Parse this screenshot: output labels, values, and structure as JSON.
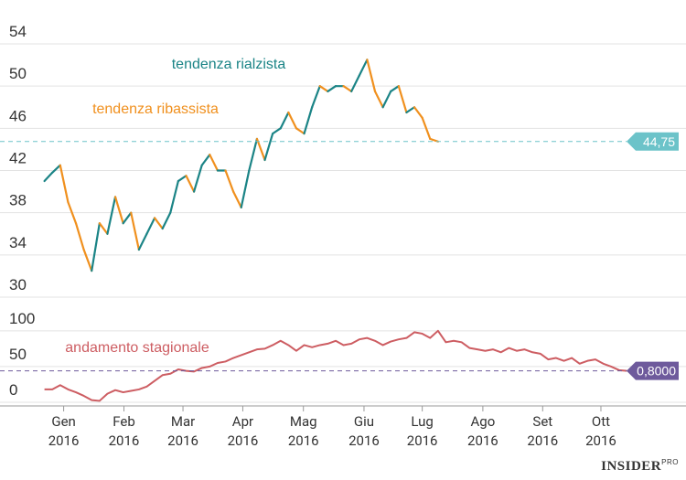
{
  "chart_data": [
    {
      "type": "trend-line",
      "values": [
        41,
        41.8,
        42.5,
        39,
        37,
        34.5,
        32.5,
        37,
        36,
        39.5,
        37,
        38,
        34.5,
        36,
        37.5,
        36.5,
        38,
        41,
        41.5,
        40,
        42.5,
        43.5,
        42,
        42,
        40,
        38.5,
        42,
        45,
        43,
        45.5,
        46,
        47.5,
        46,
        45.5,
        48,
        50,
        49.5,
        50,
        50,
        49.5,
        51,
        52.5,
        49.5,
        48,
        49.5,
        50,
        47.5,
        48,
        47,
        45,
        44.75
      ],
      "last_value_label": "44,75",
      "badge_color": "#6cc3c9",
      "up_color": "#1b8486",
      "down_color": "#f0901e",
      "annotations": [
        {
          "text": "tendenza rialzista",
          "color": "#1b8486"
        },
        {
          "text": "tendenza ribassista",
          "color": "#f0901e"
        }
      ],
      "xlim": [
        -1,
        80
      ],
      "ylim": [
        30,
        54
      ],
      "yticks": [
        30,
        34,
        38,
        42,
        46,
        50,
        54
      ],
      "grid": true
    },
    {
      "type": "line",
      "values": [
        18,
        18,
        24,
        18,
        14,
        9,
        3,
        2,
        12,
        17,
        14,
        16,
        18,
        22,
        30,
        38,
        40,
        46,
        44,
        43,
        48,
        50,
        55,
        57,
        62,
        66,
        70,
        74,
        75,
        80,
        86,
        80,
        72,
        80,
        77,
        80,
        82,
        86,
        80,
        82,
        88,
        90,
        86,
        80,
        85,
        88,
        90,
        98,
        96,
        90,
        100,
        84,
        86,
        84,
        76,
        74,
        72,
        74,
        70,
        76,
        72,
        74,
        70,
        68,
        60,
        62,
        58,
        62,
        54,
        58,
        60,
        54,
        50,
        45,
        44
      ],
      "color": "#cd5d62",
      "annotation": "andamento stagionale",
      "reference_line": 44,
      "badge_text": "0,8000",
      "badge_color": "#6e5a9c",
      "xlim": [
        -1,
        80
      ],
      "xticks": [
        {
          "value": 2.44,
          "label": "Gen\n2016"
        },
        {
          "value": 10.1,
          "label": "Feb\n2016"
        },
        {
          "value": 17.6,
          "label": "Mar\n2016"
        },
        {
          "value": 25.2,
          "label": "Apr\n2016"
        },
        {
          "value": 32.9,
          "label": "Mag\n2016"
        },
        {
          "value": 40.6,
          "label": "Giu\n2016"
        },
        {
          "value": 48.0,
          "label": "Lug\n2016"
        },
        {
          "value": 55.7,
          "label": "Ago\n2016"
        },
        {
          "value": 63.3,
          "label": "Set\n2016"
        },
        {
          "value": 70.7,
          "label": "Ott\n2016"
        }
      ],
      "ylim": [
        0,
        110
      ],
      "yticks": [
        0,
        50,
        100
      ],
      "grid": true
    }
  ],
  "logo": "INSIDER",
  "logo_sup": "PRO"
}
